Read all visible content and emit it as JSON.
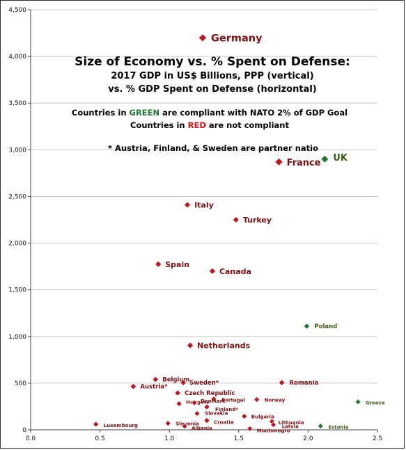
{
  "colors": {
    "red": "#c0141c",
    "green": "#1f7a32",
    "redText": "#7a1010",
    "greenText": "#3d5a18",
    "grid": "#c8c8c8"
  },
  "chart_data": {
    "type": "scatter",
    "title": "Size of Economy vs. % Spent on Defense:",
    "subtitle_lines": [
      "2017 GDP in US$ Billions, PPP (vertical)",
      "vs. % GDP Spent on Defense (horizontal)"
    ],
    "note_line1_parts": [
      "Countries in ",
      "GREEN",
      " are compliant with NATO 2% of GDP Goal"
    ],
    "note_line2_parts": [
      "Countries in ",
      "RED",
      " are not compliant"
    ],
    "note_partner": "* Austria, Finland, & Sweden are partner natio",
    "xlim": [
      0,
      2.5
    ],
    "ylim": [
      0,
      4500
    ],
    "x_ticks": [
      "0.0",
      "0.5",
      "1.0",
      "1.5",
      "2.0",
      "2.5"
    ],
    "y_ticks": [
      "0",
      "500",
      "1,000",
      "1,500",
      "2,000",
      "2,500",
      "3,000",
      "3,500",
      "4,000",
      "4,500"
    ],
    "grid": "horizontal",
    "legend": "none",
    "points": [
      {
        "name": "Germany",
        "x": 1.24,
        "y": 4199,
        "status": "red",
        "size": "xl"
      },
      {
        "name": "France",
        "x": 1.79,
        "y": 2870,
        "status": "red",
        "size": "l"
      },
      {
        "name": "UK",
        "x": 2.12,
        "y": 2900,
        "status": "green",
        "size": "l"
      },
      {
        "name": "Italy",
        "x": 1.13,
        "y": 2410,
        "status": "red",
        "size": "m"
      },
      {
        "name": "Turkey",
        "x": 1.48,
        "y": 2250,
        "status": "red",
        "size": "m"
      },
      {
        "name": "Spain",
        "x": 0.92,
        "y": 1775,
        "status": "red",
        "size": "m"
      },
      {
        "name": "Canada",
        "x": 1.31,
        "y": 1700,
        "status": "red",
        "size": "m"
      },
      {
        "name": "Poland",
        "x": 1.99,
        "y": 1110,
        "status": "green",
        "size": "s"
      },
      {
        "name": "Netherlands",
        "x": 1.15,
        "y": 905,
        "status": "red",
        "size": "m"
      },
      {
        "name": "Belgium",
        "x": 0.9,
        "y": 540,
        "status": "red",
        "size": "s"
      },
      {
        "name": "Austria*",
        "x": 0.74,
        "y": 465,
        "status": "red",
        "size": "s"
      },
      {
        "name": "Sweden*",
        "x": 1.1,
        "y": 505,
        "status": "red",
        "size": "s"
      },
      {
        "name": "Romania",
        "x": 1.81,
        "y": 505,
        "status": "red",
        "size": "s"
      },
      {
        "name": "Czech Republic",
        "x": 1.06,
        "y": 395,
        "status": "red",
        "size": "s"
      },
      {
        "name": "Portugal",
        "x": 1.32,
        "y": 330,
        "status": "red",
        "size": "xs"
      },
      {
        "name": "Hungary",
        "x": 1.07,
        "y": 280,
        "status": "red",
        "size": "xs"
      },
      {
        "name": "Denmark",
        "x": 1.18,
        "y": 290,
        "status": "red",
        "size": "xs"
      },
      {
        "name": "Finland*",
        "x": 1.27,
        "y": 245,
        "status": "red",
        "size": "xs"
      },
      {
        "name": "Norway",
        "x": 1.63,
        "y": 325,
        "status": "red",
        "size": "xs"
      },
      {
        "name": "Slovakia",
        "x": 1.2,
        "y": 175,
        "status": "red",
        "size": "xs"
      },
      {
        "name": "Bulgaria",
        "x": 1.54,
        "y": 145,
        "status": "red",
        "size": "xs"
      },
      {
        "name": "Lithuania",
        "x": 1.74,
        "y": 90,
        "status": "red",
        "size": "xs"
      },
      {
        "name": "Latvia",
        "x": 1.75,
        "y": 55,
        "status": "red",
        "size": "xs"
      },
      {
        "name": "Croatia",
        "x": 1.27,
        "y": 100,
        "status": "red",
        "size": "xs"
      },
      {
        "name": "Slovenia",
        "x": 0.99,
        "y": 70,
        "status": "red",
        "size": "xs"
      },
      {
        "name": "Albania",
        "x": 1.11,
        "y": 38,
        "status": "red",
        "size": "xs"
      },
      {
        "name": "Luxembourg",
        "x": 0.47,
        "y": 60,
        "status": "red",
        "size": "xs"
      },
      {
        "name": "Montenegro",
        "x": 1.58,
        "y": 12,
        "status": "red",
        "size": "xs"
      },
      {
        "name": "Estonia",
        "x": 2.09,
        "y": 40,
        "status": "green",
        "size": "xs"
      },
      {
        "name": "Greece",
        "x": 2.36,
        "y": 300,
        "status": "green",
        "size": "xs"
      }
    ]
  }
}
